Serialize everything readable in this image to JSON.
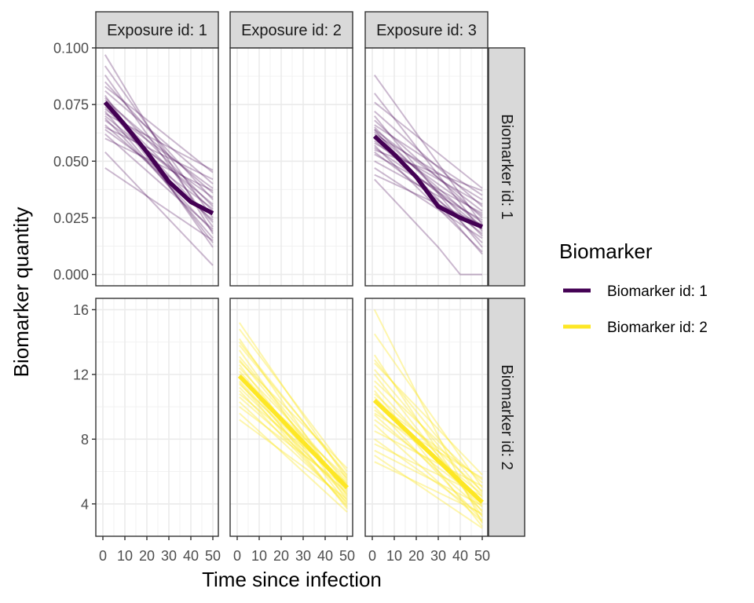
{
  "chart_data": {
    "type": "line",
    "layout": "facet_grid",
    "xlabel": "Time since infection",
    "ylabel": "Biomarker quantity",
    "xlim": [
      0,
      50
    ],
    "x_ticks": [
      0,
      10,
      20,
      30,
      40,
      50
    ],
    "x_tick_labels": [
      "0",
      "10",
      "20",
      "30",
      "40",
      "50"
    ],
    "grid": true,
    "columns": [
      "Exposure id: 1",
      "Exposure id: 2",
      "Exposure id: 3"
    ],
    "rows": [
      "Biomarker id: 1",
      "Biomarker id: 2"
    ],
    "row_scales": [
      {
        "ylim": [
          -0.005,
          0.1
        ],
        "ticks": [
          0.0,
          0.025,
          0.05,
          0.075,
          0.1
        ],
        "tick_labels": [
          "0.000",
          "0.025",
          "0.050",
          "0.075",
          "0.100"
        ]
      },
      {
        "ylim": [
          2.0,
          16.7
        ],
        "ticks": [
          4,
          8,
          12,
          16
        ],
        "tick_labels": [
          "4",
          "8",
          "12",
          "16"
        ]
      }
    ],
    "legend": {
      "title": "Biomarker",
      "position": "right",
      "entries": [
        {
          "label": "Biomarker id: 1",
          "color": "#440154"
        },
        {
          "label": "Biomarker id: 2",
          "color": "#FDE725"
        }
      ]
    },
    "panels": [
      {
        "row": 0,
        "col": 0,
        "color": "#440154",
        "mean": {
          "x": [
            1,
            10,
            20,
            30,
            40,
            50
          ],
          "y": [
            0.076,
            0.066,
            0.054,
            0.041,
            0.032,
            0.027
          ]
        },
        "individuals": [
          {
            "x": [
              1,
              50
            ],
            "y": [
              0.097,
              0.018
            ]
          },
          {
            "x": [
              1,
              50
            ],
            "y": [
              0.092,
              0.025
            ]
          },
          {
            "x": [
              1,
              50
            ],
            "y": [
              0.088,
              0.021
            ]
          },
          {
            "x": [
              1,
              50
            ],
            "y": [
              0.085,
              0.033
            ]
          },
          {
            "x": [
              1,
              50
            ],
            "y": [
              0.083,
              0.045
            ]
          },
          {
            "x": [
              1,
              50
            ],
            "y": [
              0.081,
              0.04
            ]
          },
          {
            "x": [
              1,
              50
            ],
            "y": [
              0.079,
              0.012
            ]
          },
          {
            "x": [
              1,
              50
            ],
            "y": [
              0.078,
              0.03
            ]
          },
          {
            "x": [
              1,
              50
            ],
            "y": [
              0.077,
              0.036
            ]
          },
          {
            "x": [
              1,
              50
            ],
            "y": [
              0.076,
              0.014
            ]
          },
          {
            "x": [
              1,
              50
            ],
            "y": [
              0.075,
              0.028
            ]
          },
          {
            "x": [
              1,
              50
            ],
            "y": [
              0.074,
              0.023
            ]
          },
          {
            "x": [
              1,
              50
            ],
            "y": [
              0.073,
              0.038
            ]
          },
          {
            "x": [
              1,
              50
            ],
            "y": [
              0.072,
              0.016
            ]
          },
          {
            "x": [
              1,
              50
            ],
            "y": [
              0.071,
              0.046
            ]
          },
          {
            "x": [
              1,
              50
            ],
            "y": [
              0.07,
              0.031
            ]
          },
          {
            "x": [
              1,
              50
            ],
            "y": [
              0.069,
              0.019
            ]
          },
          {
            "x": [
              1,
              50
            ],
            "y": [
              0.068,
              0.034
            ]
          },
          {
            "x": [
              1,
              50
            ],
            "y": [
              0.066,
              0.024
            ]
          },
          {
            "x": [
              1,
              50
            ],
            "y": [
              0.065,
              0.042
            ]
          },
          {
            "x": [
              1,
              50
            ],
            "y": [
              0.064,
              0.029
            ]
          },
          {
            "x": [
              1,
              50
            ],
            "y": [
              0.062,
              0.02
            ]
          },
          {
            "x": [
              1,
              50
            ],
            "y": [
              0.06,
              0.037
            ]
          },
          {
            "x": [
              1,
              50
            ],
            "y": [
              0.054,
              0.004
            ]
          },
          {
            "x": [
              1,
              50
            ],
            "y": [
              0.047,
              0.015
            ]
          }
        ]
      },
      {
        "row": 0,
        "col": 1,
        "color": "#440154",
        "mean": null,
        "individuals": []
      },
      {
        "row": 0,
        "col": 2,
        "color": "#440154",
        "mean": {
          "x": [
            1,
            10,
            20,
            30,
            40,
            50
          ],
          "y": [
            0.061,
            0.053,
            0.043,
            0.03,
            0.025,
            0.021
          ]
        },
        "individuals": [
          {
            "x": [
              1,
              50
            ],
            "y": [
              0.088,
              0.022
            ]
          },
          {
            "x": [
              1,
              50
            ],
            "y": [
              0.08,
              0.019
            ]
          },
          {
            "x": [
              1,
              50
            ],
            "y": [
              0.076,
              0.038
            ]
          },
          {
            "x": [
              1,
              50
            ],
            "y": [
              0.072,
              0.03
            ]
          },
          {
            "x": [
              1,
              50
            ],
            "y": [
              0.07,
              0.012
            ]
          },
          {
            "x": [
              1,
              50
            ],
            "y": [
              0.068,
              0.025
            ]
          },
          {
            "x": [
              1,
              50
            ],
            "y": [
              0.066,
              0.035
            ]
          },
          {
            "x": [
              1,
              50
            ],
            "y": [
              0.065,
              0.017
            ]
          },
          {
            "x": [
              1,
              50
            ],
            "y": [
              0.064,
              0.028
            ]
          },
          {
            "x": [
              1,
              50
            ],
            "y": [
              0.063,
              0.021
            ]
          },
          {
            "x": [
              1,
              50
            ],
            "y": [
              0.062,
              0.033
            ]
          },
          {
            "x": [
              1,
              50
            ],
            "y": [
              0.061,
              0.014
            ]
          },
          {
            "x": [
              1,
              50
            ],
            "y": [
              0.06,
              0.026
            ]
          },
          {
            "x": [
              1,
              50
            ],
            "y": [
              0.059,
              0.02
            ]
          },
          {
            "x": [
              1,
              50
            ],
            "y": [
              0.058,
              0.031
            ]
          },
          {
            "x": [
              1,
              50
            ],
            "y": [
              0.057,
              0.01
            ]
          },
          {
            "x": [
              1,
              50
            ],
            "y": [
              0.056,
              0.023
            ]
          },
          {
            "x": [
              1,
              50
            ],
            "y": [
              0.055,
              0.037
            ]
          },
          {
            "x": [
              1,
              50
            ],
            "y": [
              0.054,
              0.018
            ]
          },
          {
            "x": [
              1,
              50
            ],
            "y": [
              0.053,
              0.027
            ]
          },
          {
            "x": [
              1,
              50
            ],
            "y": [
              0.05,
              0.024
            ]
          },
          {
            "x": [
              1,
              50
            ],
            "y": [
              0.047,
              0.016
            ]
          },
          {
            "x": [
              1,
              50
            ],
            "y": [
              0.044,
              0.022
            ]
          },
          {
            "x": [
              1,
              30,
              40,
              50
            ],
            "y": [
              0.042,
              0.012,
              0.0,
              0.0
            ]
          },
          {
            "x": [
              1,
              50
            ],
            "y": [
              0.064,
              0.009
            ]
          }
        ]
      },
      {
        "row": 1,
        "col": 0,
        "color": "#FDE725",
        "mean": null,
        "individuals": []
      },
      {
        "row": 1,
        "col": 1,
        "color": "#FDE725",
        "mean": {
          "x": [
            1,
            50
          ],
          "y": [
            11.9,
            5.0
          ]
        },
        "individuals": [
          {
            "x": [
              1,
              50
            ],
            "y": [
              15.2,
              5.5
            ]
          },
          {
            "x": [
              1,
              50
            ],
            "y": [
              14.8,
              6.0
            ]
          },
          {
            "x": [
              1,
              50
            ],
            "y": [
              14.2,
              4.5
            ]
          },
          {
            "x": [
              1,
              50
            ],
            "y": [
              13.8,
              5.8
            ]
          },
          {
            "x": [
              1,
              50
            ],
            "y": [
              13.5,
              4.2
            ]
          },
          {
            "x": [
              1,
              50
            ],
            "y": [
              13.1,
              5.2
            ]
          },
          {
            "x": [
              1,
              50
            ],
            "y": [
              12.8,
              6.2
            ]
          },
          {
            "x": [
              1,
              50
            ],
            "y": [
              12.6,
              4.0
            ]
          },
          {
            "x": [
              1,
              50
            ],
            "y": [
              12.4,
              5.4
            ]
          },
          {
            "x": [
              1,
              50
            ],
            "y": [
              12.2,
              4.8
            ]
          },
          {
            "x": [
              1,
              50
            ],
            "y": [
              12.0,
              3.7
            ]
          },
          {
            "x": [
              1,
              50
            ],
            "y": [
              11.8,
              5.6
            ]
          },
          {
            "x": [
              1,
              50
            ],
            "y": [
              11.6,
              4.4
            ]
          },
          {
            "x": [
              1,
              50
            ],
            "y": [
              11.4,
              5.1
            ]
          },
          {
            "x": [
              1,
              50
            ],
            "y": [
              11.2,
              4.6
            ]
          },
          {
            "x": [
              1,
              50
            ],
            "y": [
              11.0,
              3.9
            ]
          },
          {
            "x": [
              1,
              50
            ],
            "y": [
              10.8,
              5.3
            ]
          },
          {
            "x": [
              1,
              50
            ],
            "y": [
              10.6,
              4.7
            ]
          },
          {
            "x": [
              1,
              50
            ],
            "y": [
              10.3,
              4.1
            ]
          },
          {
            "x": [
              1,
              50
            ],
            "y": [
              10.0,
              5.0
            ]
          },
          {
            "x": [
              1,
              50
            ],
            "y": [
              9.6,
              3.5
            ]
          },
          {
            "x": [
              1,
              50
            ],
            "y": [
              9.2,
              4.3
            ]
          },
          {
            "x": [
              1,
              50
            ],
            "y": [
              12.9,
              4.9
            ]
          },
          {
            "x": [
              1,
              50
            ],
            "y": [
              14.0,
              5.7
            ]
          },
          {
            "x": [
              1,
              50
            ],
            "y": [
              11.5,
              3.8
            ]
          }
        ]
      },
      {
        "row": 1,
        "col": 2,
        "color": "#FDE725",
        "mean": {
          "x": [
            1,
            50
          ],
          "y": [
            10.4,
            4.1
          ]
        },
        "individuals": [
          {
            "x": [
              1,
              50
            ],
            "y": [
              16.0,
              2.8
            ]
          },
          {
            "x": [
              1,
              50
            ],
            "y": [
              14.5,
              5.0
            ]
          },
          {
            "x": [
              1,
              50
            ],
            "y": [
              13.2,
              3.2
            ]
          },
          {
            "x": [
              1,
              50
            ],
            "y": [
              12.7,
              5.8
            ]
          },
          {
            "x": [
              1,
              50
            ],
            "y": [
              12.3,
              4.4
            ]
          },
          {
            "x": [
              1,
              50
            ],
            "y": [
              12.0,
              3.5
            ]
          },
          {
            "x": [
              1,
              50
            ],
            "y": [
              11.6,
              5.3
            ]
          },
          {
            "x": [
              1,
              50
            ],
            "y": [
              11.3,
              4.0
            ]
          },
          {
            "x": [
              1,
              50
            ],
            "y": [
              11.0,
              2.6
            ]
          },
          {
            "x": [
              1,
              50
            ],
            "y": [
              10.8,
              4.8
            ]
          },
          {
            "x": [
              1,
              50
            ],
            "y": [
              10.6,
              3.8
            ]
          },
          {
            "x": [
              1,
              50
            ],
            "y": [
              10.3,
              5.5
            ]
          },
          {
            "x": [
              1,
              50
            ],
            "y": [
              10.0,
              3.0
            ]
          },
          {
            "x": [
              1,
              50
            ],
            "y": [
              9.8,
              4.6
            ]
          },
          {
            "x": [
              1,
              50
            ],
            "y": [
              9.5,
              3.6
            ]
          },
          {
            "x": [
              1,
              50
            ],
            "y": [
              9.2,
              4.2
            ]
          },
          {
            "x": [
              1,
              50
            ],
            "y": [
              8.9,
              2.9
            ]
          },
          {
            "x": [
              1,
              50
            ],
            "y": [
              8.5,
              5.1
            ]
          },
          {
            "x": [
              1,
              50
            ],
            "y": [
              8.0,
              3.3
            ]
          },
          {
            "x": [
              1,
              50
            ],
            "y": [
              7.7,
              4.5
            ]
          },
          {
            "x": [
              1,
              50
            ],
            "y": [
              7.3,
              3.9
            ]
          },
          {
            "x": [
              1,
              50
            ],
            "y": [
              7.0,
              2.5
            ]
          },
          {
            "x": [
              1,
              50
            ],
            "y": [
              6.6,
              3.4
            ]
          },
          {
            "x": [
              1,
              50
            ],
            "y": [
              9.6,
              5.6
            ]
          },
          {
            "x": [
              1,
              50
            ],
            "y": [
              12.9,
              4.7
            ]
          }
        ]
      }
    ]
  }
}
